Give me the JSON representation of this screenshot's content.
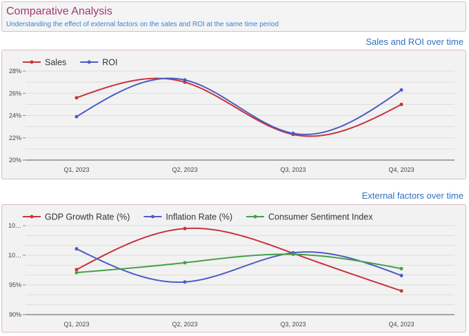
{
  "header": {
    "title": "Comparative Analysis",
    "subtitle": "Understanding the effect of external factors on the sales and ROI at the same time period"
  },
  "chart_data": [
    {
      "type": "line",
      "title": "Sales and ROI over time",
      "categories": [
        "Q1, 2023",
        "Q2, 2023",
        "Q3, 2023",
        "Q4, 2023"
      ],
      "y_ticks": [
        "20%",
        "22%",
        "24%",
        "26%",
        "28%"
      ],
      "ylim": [
        20,
        28
      ],
      "legend_position": "top-left",
      "grid": true,
      "series": [
        {
          "name": "Sales",
          "color": "#c8323c",
          "values": [
            25.6,
            27.0,
            22.3,
            25.0
          ]
        },
        {
          "name": "ROI",
          "color": "#4a5cc4",
          "values": [
            23.9,
            27.2,
            22.4,
            26.3
          ]
        }
      ]
    },
    {
      "type": "line",
      "title": "External factors over time",
      "categories": [
        "Q1, 2023",
        "Q2, 2023",
        "Q3, 2023",
        "Q4, 2023"
      ],
      "y_ticks": [
        "90%",
        "95%",
        "10…",
        "10…"
      ],
      "ylim": [
        90,
        108
      ],
      "legend_position": "top-left",
      "grid": true,
      "series": [
        {
          "name": "GDP Growth Rate (%)",
          "color": "#c8323c",
          "values": [
            99.1,
            107.4,
            102.4,
            94.8
          ]
        },
        {
          "name": "Inflation Rate (%)",
          "color": "#4a5cc4",
          "values": [
            103.3,
            96.6,
            102.5,
            97.9
          ]
        },
        {
          "name": "Consumer Sentiment Index",
          "color": "#43a047",
          "values": [
            98.5,
            100.5,
            102.2,
            99.3
          ]
        }
      ]
    }
  ]
}
